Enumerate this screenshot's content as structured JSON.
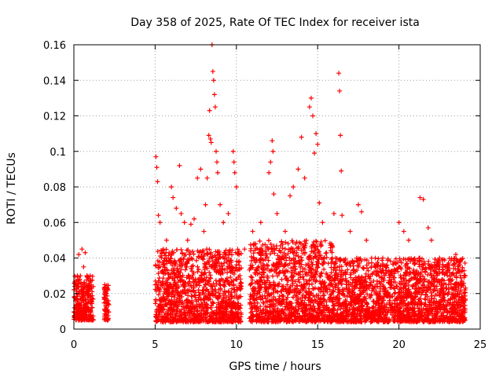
{
  "chart_data": {
    "type": "scatter",
    "title": "Day 358 of 2025, Rate Of TEC Index for receiver ista",
    "xlabel": "GPS time / hours",
    "ylabel": "ROTI / TECUs",
    "xlim": [
      0,
      25
    ],
    "ylim": [
      0,
      0.16
    ],
    "xticks": [
      0,
      5,
      10,
      15,
      20,
      25
    ],
    "xtick_labels": [
      "0",
      "5",
      "10",
      "15",
      "20",
      "25"
    ],
    "yticks": [
      0,
      0.02,
      0.04,
      0.06,
      0.08,
      0.1,
      0.12,
      0.14,
      0.16
    ],
    "ytick_labels": [
      "0",
      "0.02",
      "0.04",
      "0.06",
      "0.08",
      "0.1",
      "0.12",
      "0.14",
      "0.16"
    ],
    "grid": true,
    "marker": "+",
    "color": "#ff0000",
    "series": [
      {
        "name": "ROTI",
        "points": [
          [
            0.05,
            0.012
          ],
          [
            0.1,
            0.016
          ],
          [
            0.15,
            0.024
          ],
          [
            0.2,
            0.012
          ],
          [
            0.3,
            0.042
          ],
          [
            0.35,
            0.02
          ],
          [
            0.4,
            0.03
          ],
          [
            0.45,
            0.008
          ],
          [
            0.5,
            0.045
          ],
          [
            0.55,
            0.02
          ],
          [
            0.6,
            0.035
          ],
          [
            0.7,
            0.043
          ],
          [
            0.75,
            0.014
          ],
          [
            0.8,
            0.03
          ],
          [
            0.85,
            0.02
          ],
          [
            0.9,
            0.012
          ],
          [
            1.0,
            0.03
          ],
          [
            1.05,
            0.016
          ],
          [
            1.1,
            0.012
          ],
          [
            1.9,
            0.025
          ],
          [
            1.95,
            0.01
          ],
          [
            2.0,
            0.02
          ],
          [
            2.05,
            0.015
          ],
          [
            2.1,
            0.022
          ],
          [
            5.05,
            0.097
          ],
          [
            5.1,
            0.091
          ],
          [
            5.15,
            0.083
          ],
          [
            5.2,
            0.064
          ],
          [
            5.3,
            0.06
          ],
          [
            5.5,
            0.045
          ],
          [
            5.7,
            0.05
          ],
          [
            6.0,
            0.08
          ],
          [
            6.1,
            0.074
          ],
          [
            6.3,
            0.068
          ],
          [
            6.5,
            0.092
          ],
          [
            6.6,
            0.065
          ],
          [
            6.8,
            0.06
          ],
          [
            7.0,
            0.05
          ],
          [
            7.2,
            0.059
          ],
          [
            7.4,
            0.062
          ],
          [
            7.6,
            0.085
          ],
          [
            7.8,
            0.09
          ],
          [
            8.0,
            0.055
          ],
          [
            8.1,
            0.07
          ],
          [
            8.2,
            0.085
          ],
          [
            8.3,
            0.109
          ],
          [
            8.35,
            0.123
          ],
          [
            8.4,
            0.107
          ],
          [
            8.45,
            0.105
          ],
          [
            8.5,
            0.16
          ],
          [
            8.55,
            0.145
          ],
          [
            8.6,
            0.14
          ],
          [
            8.65,
            0.132
          ],
          [
            8.7,
            0.125
          ],
          [
            8.75,
            0.1
          ],
          [
            8.8,
            0.094
          ],
          [
            8.85,
            0.088
          ],
          [
            9.0,
            0.07
          ],
          [
            9.2,
            0.06
          ],
          [
            9.5,
            0.065
          ],
          [
            9.8,
            0.1
          ],
          [
            9.85,
            0.094
          ],
          [
            9.9,
            0.088
          ],
          [
            10.0,
            0.08
          ],
          [
            10.5,
            0.045
          ],
          [
            11.0,
            0.055
          ],
          [
            11.5,
            0.06
          ],
          [
            12.0,
            0.088
          ],
          [
            12.1,
            0.094
          ],
          [
            12.2,
            0.106
          ],
          [
            12.25,
            0.1
          ],
          [
            12.3,
            0.076
          ],
          [
            12.5,
            0.065
          ],
          [
            13.0,
            0.055
          ],
          [
            13.3,
            0.075
          ],
          [
            13.5,
            0.08
          ],
          [
            13.8,
            0.09
          ],
          [
            14.0,
            0.108
          ],
          [
            14.2,
            0.085
          ],
          [
            14.5,
            0.125
          ],
          [
            14.6,
            0.13
          ],
          [
            14.7,
            0.12
          ],
          [
            14.8,
            0.099
          ],
          [
            14.9,
            0.11
          ],
          [
            15.0,
            0.104
          ],
          [
            15.1,
            0.071
          ],
          [
            15.3,
            0.06
          ],
          [
            16.0,
            0.065
          ],
          [
            16.3,
            0.144
          ],
          [
            16.35,
            0.134
          ],
          [
            16.4,
            0.109
          ],
          [
            16.45,
            0.089
          ],
          [
            16.5,
            0.064
          ],
          [
            17.0,
            0.055
          ],
          [
            17.5,
            0.07
          ],
          [
            17.7,
            0.066
          ],
          [
            18.0,
            0.05
          ],
          [
            19.0,
            0.04
          ],
          [
            20.0,
            0.06
          ],
          [
            20.3,
            0.055
          ],
          [
            20.6,
            0.05
          ],
          [
            21.3,
            0.074
          ],
          [
            21.5,
            0.073
          ],
          [
            21.8,
            0.057
          ],
          [
            22.0,
            0.05
          ],
          [
            22.5,
            0.04
          ],
          [
            23.0,
            0.035
          ],
          [
            23.5,
            0.042
          ],
          [
            23.9,
            0.025
          ],
          [
            24.0,
            0.02
          ]
        ],
        "dense_band": [
          {
            "x_range": [
              0.0,
              1.2
            ],
            "y_range": [
              0.005,
              0.03
            ]
          },
          {
            "x_range": [
              1.85,
              2.15
            ],
            "y_range": [
              0.005,
              0.025
            ]
          },
          {
            "x_range": [
              5.0,
              10.3
            ],
            "y_range": [
              0.004,
              0.045
            ]
          },
          {
            "x_range": [
              10.8,
              16.0
            ],
            "y_range": [
              0.004,
              0.05
            ]
          },
          {
            "x_range": [
              16.0,
              24.1
            ],
            "y_range": [
              0.004,
              0.04
            ]
          }
        ]
      }
    ]
  }
}
